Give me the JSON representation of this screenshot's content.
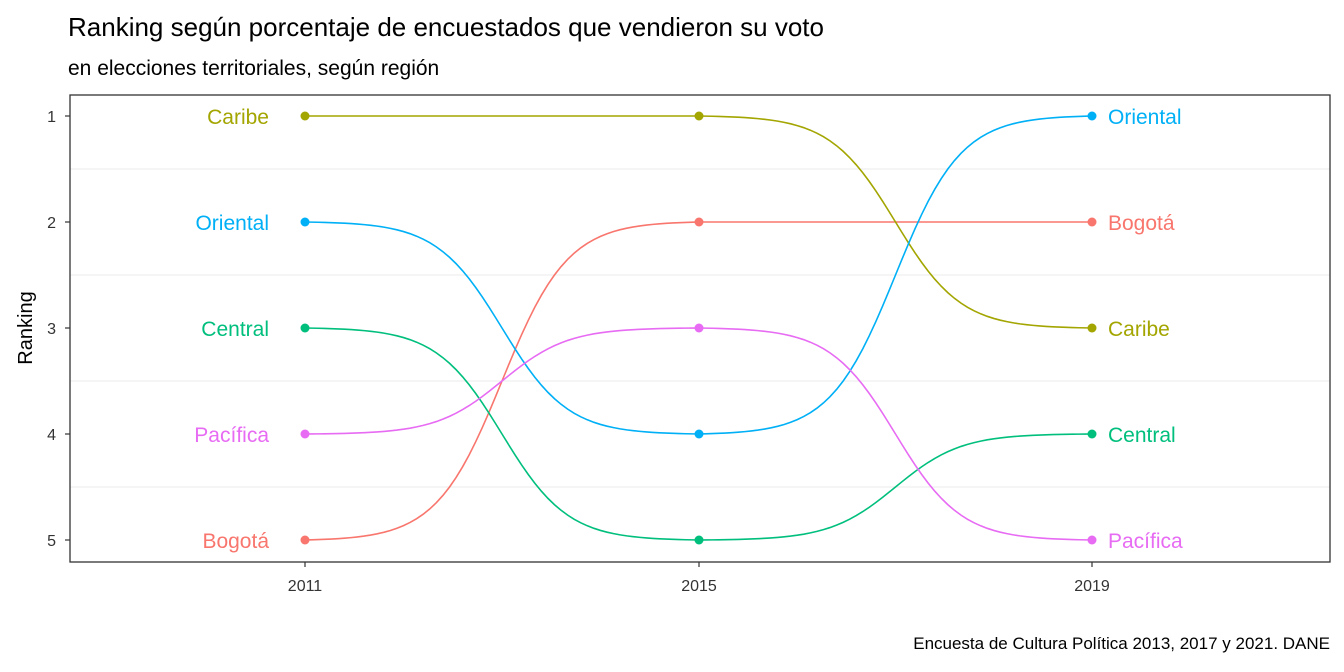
{
  "chart_data": {
    "type": "line",
    "title": "Ranking según porcentaje de encuestados que vendieron su voto",
    "subtitle": "en elecciones territoriales, según región",
    "caption": "Encuesta de Cultura Política 2013, 2017 y 2021. DANE",
    "xlabel": "",
    "ylabel": "Ranking",
    "x": [
      "2011",
      "2015",
      "2019"
    ],
    "y_ticks": [
      1,
      2,
      3,
      4,
      5
    ],
    "ylim": [
      1,
      5
    ],
    "y_reversed": true,
    "grid": "horizontal minor lines",
    "legend": "direct labels at line ends",
    "series": [
      {
        "name": "Bogotá",
        "color": "#F8766D",
        "values": [
          5,
          2,
          2
        ]
      },
      {
        "name": "Caribe",
        "color": "#A3A500",
        "values": [
          1,
          1,
          3
        ]
      },
      {
        "name": "Central",
        "color": "#00BF7D",
        "values": [
          3,
          5,
          4
        ]
      },
      {
        "name": "Oriental",
        "color": "#00B0F6",
        "values": [
          2,
          4,
          1
        ]
      },
      {
        "name": "Pacífica",
        "color": "#E76BF3",
        "values": [
          4,
          3,
          5
        ]
      }
    ]
  }
}
